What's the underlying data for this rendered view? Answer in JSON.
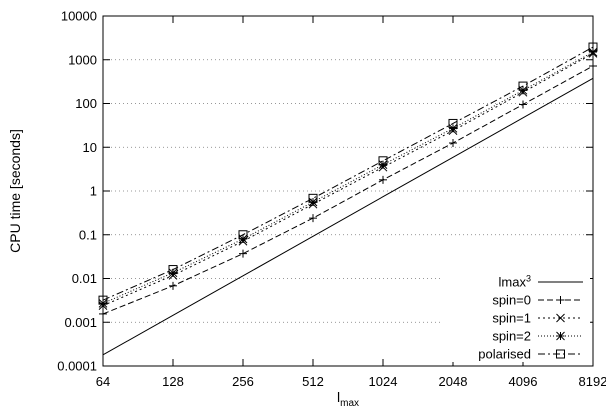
{
  "chart_data": {
    "type": "line",
    "xlabel": "l",
    "xlabel_sub": "max",
    "ylabel": "CPU time [seconds]",
    "x_scale": "log2",
    "y_scale": "log10",
    "xlim": [
      64,
      8192
    ],
    "ylim": [
      0.0001,
      10000
    ],
    "x_ticks": [
      64,
      128,
      256,
      512,
      1024,
      2048,
      4096,
      8192
    ],
    "x_tick_labels": [
      "64",
      "128",
      "256",
      "512",
      "1024",
      "2048",
      "4096",
      "8192"
    ],
    "y_ticks": [
      0.0001,
      0.001,
      0.01,
      0.1,
      1,
      10,
      100,
      1000,
      10000
    ],
    "y_tick_labels": [
      "0.0001",
      "0.001",
      "0.01",
      "0.1",
      "1",
      "10",
      "100",
      "1000",
      "10000"
    ],
    "grid": "horizontal dotted",
    "legend_position": "bottom-right",
    "x": [
      64,
      128,
      256,
      512,
      1024,
      2048,
      4096,
      8192
    ],
    "series": [
      {
        "name": "lmax",
        "name_sup": "3",
        "style": "solid",
        "marker": "none",
        "values": [
          0.00018,
          0.00144,
          0.0115,
          0.092,
          0.74,
          5.9,
          47,
          377
        ]
      },
      {
        "name": "spin=0",
        "style": "dashed",
        "marker": "plus",
        "values": [
          0.00155,
          0.0068,
          0.037,
          0.24,
          1.8,
          12.5,
          95,
          720
        ]
      },
      {
        "name": "spin=1",
        "style": "dotted-short",
        "marker": "cross",
        "values": [
          0.0024,
          0.0118,
          0.071,
          0.5,
          3.5,
          24,
          180,
          1400
        ]
      },
      {
        "name": "spin=2",
        "style": "dotted",
        "marker": "star",
        "values": [
          0.0027,
          0.0135,
          0.08,
          0.56,
          4.0,
          27,
          200,
          1500
        ]
      },
      {
        "name": "polarised",
        "style": "dash-dot",
        "marker": "square",
        "values": [
          0.0032,
          0.016,
          0.1,
          0.68,
          4.9,
          35,
          250,
          1950
        ]
      }
    ]
  }
}
